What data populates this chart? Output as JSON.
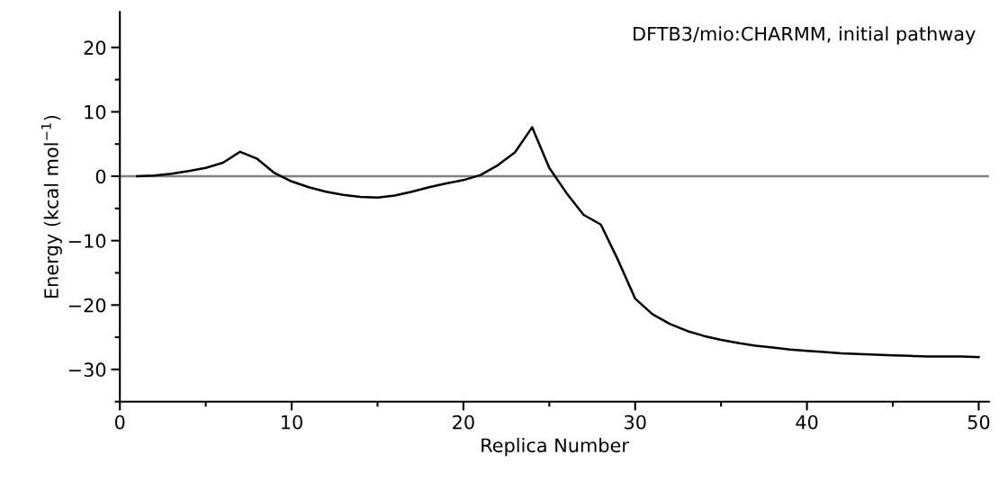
{
  "chart_data": {
    "type": "line",
    "xlabel": "Replica Number",
    "ylabel": "Energy (kcal mol$^{−1}$)",
    "annotations": [
      "DFTB3/mio:CHARMM, initial pathway"
    ],
    "x": [
      1,
      2,
      3,
      4,
      5,
      6,
      7,
      8,
      9,
      10,
      11,
      12,
      13,
      14,
      15,
      16,
      17,
      18,
      19,
      20,
      21,
      22,
      23,
      24,
      25,
      26,
      27,
      28,
      29,
      30,
      31,
      32,
      33,
      34,
      35,
      36,
      37,
      38,
      39,
      40,
      41,
      42,
      43,
      44,
      45,
      46,
      47,
      48,
      49,
      50
    ],
    "series": [
      {
        "color": "#000000",
        "values": [
          0,
          0.1,
          0.4,
          0.8,
          1.3,
          2.1,
          3.8,
          2.7,
          0.5,
          -0.8,
          -1.7,
          -2.4,
          -2.9,
          -3.2,
          -3.3,
          -3.0,
          -2.4,
          -1.7,
          -1.1,
          -0.6,
          0.2,
          1.7,
          3.7,
          7.6,
          1.3,
          -2.6,
          -6.0,
          -7.5,
          -13.0,
          -19.0,
          -21.4,
          -22.9,
          -24.0,
          -24.8,
          -25.4,
          -25.9,
          -26.3,
          -26.6,
          -26.9,
          -27.1,
          -27.3,
          -27.5,
          -27.6,
          -27.7,
          -27.8,
          -27.9,
          -28.0,
          -28.0,
          -28.0,
          -28.1
        ]
      }
    ],
    "xlim": [
      0,
      50.6
    ],
    "ylim": [
      -35,
      25.5
    ],
    "xticks": [
      0,
      {
        "value": 5,
        "label": null
      },
      10,
      {
        "value": 15,
        "label": null
      },
      20,
      {
        "value": 25,
        "label": null
      },
      30,
      {
        "value": 35,
        "label": null
      },
      40,
      {
        "value": 45,
        "label": null
      },
      50
    ],
    "yticks": [
      {
        "value": -35,
        "label": null
      },
      -30,
      {
        "value": -25,
        "label": null
      },
      -20,
      {
        "value": -15,
        "label": null
      },
      -10,
      {
        "value": -5,
        "label": null
      },
      0,
      {
        "value": 5,
        "label": null
      },
      10,
      {
        "value": 15,
        "label": null
      },
      20
    ],
    "ref_lines": [
      {
        "axis": "y",
        "value": 0,
        "color": "#808080"
      }
    ],
    "grid": false,
    "legend": false,
    "marker": "none",
    "line_style": "solid"
  }
}
